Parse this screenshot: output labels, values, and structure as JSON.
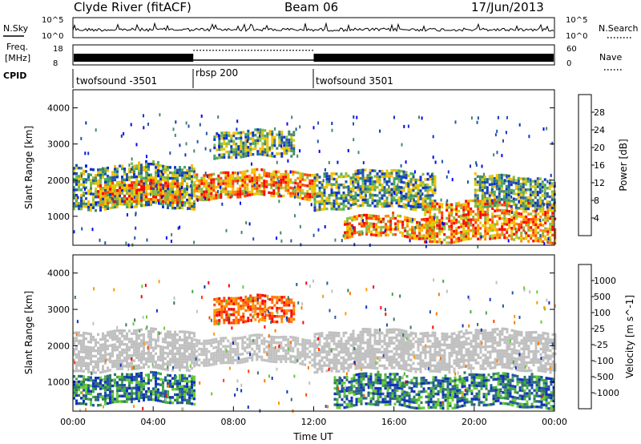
{
  "header": {
    "station": "Clyde River (fitACF)",
    "beam": "Beam 06",
    "date": "17/Jun/2013"
  },
  "top_panels": {
    "nsky_label": "N.Sky",
    "nsearch_label": "N.Search",
    "freq_label_line1": "Freq.",
    "freq_label_line2": "[MHz]",
    "nave_label": "Nave",
    "cpid_label": "CPID",
    "noise_ticks_left": [
      "10^5",
      "10^0"
    ],
    "noise_ticks_right": [
      "10^5",
      "10^0"
    ],
    "freq_ticks_left": [
      "18",
      "8"
    ],
    "nave_ticks_right": [
      "60",
      "0"
    ]
  },
  "cpid_segments": [
    {
      "label": "twofsound -3501",
      "start_hour": 0
    },
    {
      "label": "rbsp 200",
      "start_hour": 6
    },
    {
      "label": "twofsound 3501",
      "start_hour": 12
    }
  ],
  "power_colorbar": {
    "label": "Power [dB]",
    "ticks": [
      "28",
      "24",
      "20",
      "16",
      "12",
      "8",
      "4"
    ],
    "colors": [
      "#ff0000",
      "#ff4400",
      "#ff8800",
      "#ffbb00",
      "#ddcc00",
      "#88bb44",
      "#44aa66",
      "#448866",
      "#2255aa",
      "#1133cc",
      "#0000ff"
    ]
  },
  "velocity_colorbar": {
    "label": "Velocity [m s^-1]",
    "ticks": [
      "1000",
      "500",
      "100",
      "25",
      "-25",
      "-100",
      "-500",
      "-1000"
    ],
    "colors": [
      "#1133bb",
      "#2255aa",
      "#337766",
      "#44aa44",
      "#66cc33",
      "#c0c0c0",
      "#c0c0c0",
      "#ff9900",
      "#ff7700",
      "#ff4400",
      "#ff0000"
    ]
  },
  "chart_data": [
    {
      "type": "heatmap",
      "title": "Power",
      "ylabel": "Slant Range [km]",
      "xlabel": "",
      "yticks": [
        1000,
        2000,
        3000,
        4000
      ],
      "ylim": [
        200,
        4500
      ],
      "xlim": [
        0,
        24
      ],
      "bands": [
        {
          "t0": 0.0,
          "t1": 6.0,
          "r0": 1200,
          "r1": 2400,
          "level": "mid"
        },
        {
          "t0": 1.2,
          "t1": 5.5,
          "r0": 1350,
          "r1": 1900,
          "level": "high"
        },
        {
          "t0": 6.0,
          "t1": 12.0,
          "r0": 1500,
          "r1": 2200,
          "level": "high"
        },
        {
          "t0": 7.0,
          "t1": 11.0,
          "r0": 2600,
          "r1": 3300,
          "level": "mid"
        },
        {
          "t0": 12.0,
          "t1": 18.0,
          "r0": 1200,
          "r1": 2200,
          "level": "mid"
        },
        {
          "t0": 13.5,
          "t1": 18.0,
          "r0": 400,
          "r1": 1000,
          "level": "high"
        },
        {
          "t0": 17.5,
          "t1": 24.0,
          "r0": 300,
          "r1": 1400,
          "level": "high"
        },
        {
          "t0": 20.0,
          "t1": 24.0,
          "r0": 1200,
          "r1": 2100,
          "level": "mid"
        }
      ]
    },
    {
      "type": "heatmap",
      "title": "Velocity",
      "ylabel": "Slant Range [km]",
      "xlabel": "Time UT",
      "xticks": [
        "00:00",
        "04:00",
        "08:00",
        "12:00",
        "16:00",
        "20:00",
        "00:00"
      ],
      "yticks": [
        1000,
        2000,
        3000,
        4000
      ],
      "ylim": [
        200,
        4500
      ],
      "xlim": [
        0,
        24
      ],
      "bands": [
        {
          "t0": 0.0,
          "t1": 6.0,
          "r0": 1300,
          "r1": 2400,
          "level": "ground"
        },
        {
          "t0": 0.0,
          "t1": 6.0,
          "r0": 400,
          "r1": 1200,
          "level": "positive"
        },
        {
          "t0": 6.0,
          "t1": 12.0,
          "r0": 1500,
          "r1": 2200,
          "level": "ground"
        },
        {
          "t0": 7.0,
          "t1": 11.0,
          "r0": 2600,
          "r1": 3300,
          "level": "negative"
        },
        {
          "t0": 12.0,
          "t1": 24.0,
          "r0": 1300,
          "r1": 2400,
          "level": "ground"
        },
        {
          "t0": 13.0,
          "t1": 24.0,
          "r0": 300,
          "r1": 1200,
          "level": "positive"
        }
      ]
    }
  ]
}
